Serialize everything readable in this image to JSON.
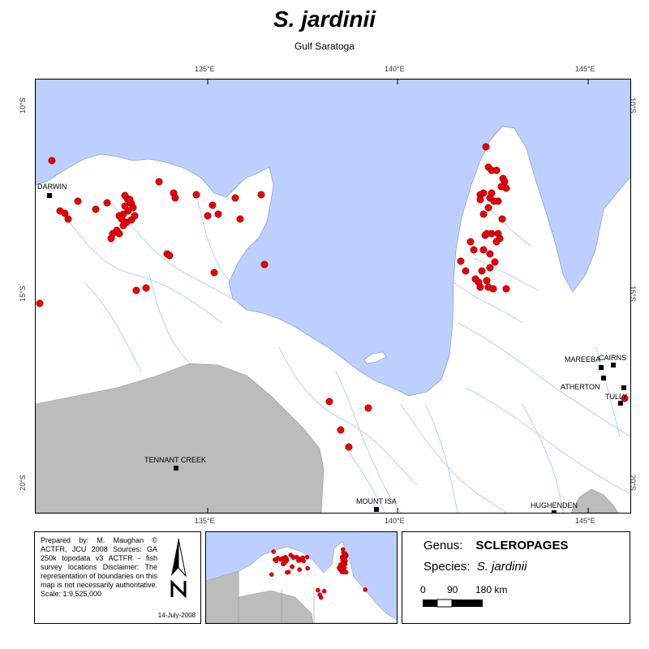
{
  "map": {
    "title": "S. jardinii",
    "subtitle": "Gulf Saratoga",
    "longitude_ticks": [
      "135°E",
      "140°E",
      "145°E"
    ],
    "latitude_ticks": [
      "10°S",
      "15°S",
      "20°S"
    ],
    "towns": [
      "DARWIN",
      "TENNANT CREEK",
      "MOUNT ISA",
      "HUGHENDEN",
      "MAREEBA",
      "CAIRNS",
      "ATHERTON",
      "TULLY"
    ],
    "colors": {
      "sea": "#bccfff",
      "land": "#ffffff",
      "outside_area": "#bcbcbc",
      "rivers": "#a9c6f0",
      "record": "#e8000b"
    }
  },
  "credits": {
    "text": "Prepared by: M. Maughan © ACTFR, JCU 2008 Sources: GA 250k topodata v3 ACTFR - fish survey locations Disclaimer: The representation of boundaries on this map is not necessarily authoritative. Scale: 1:9,525,000",
    "date": "14-July-2008",
    "north_arrow": "north-arrow-icon"
  },
  "legend": {
    "genus_label": "Genus:",
    "genus_value": "SCLEROPAGES",
    "species_label": "Species:",
    "species_value": "S. jardinii",
    "scale_ticks": [
      "0",
      "90",
      "180 km"
    ]
  }
}
